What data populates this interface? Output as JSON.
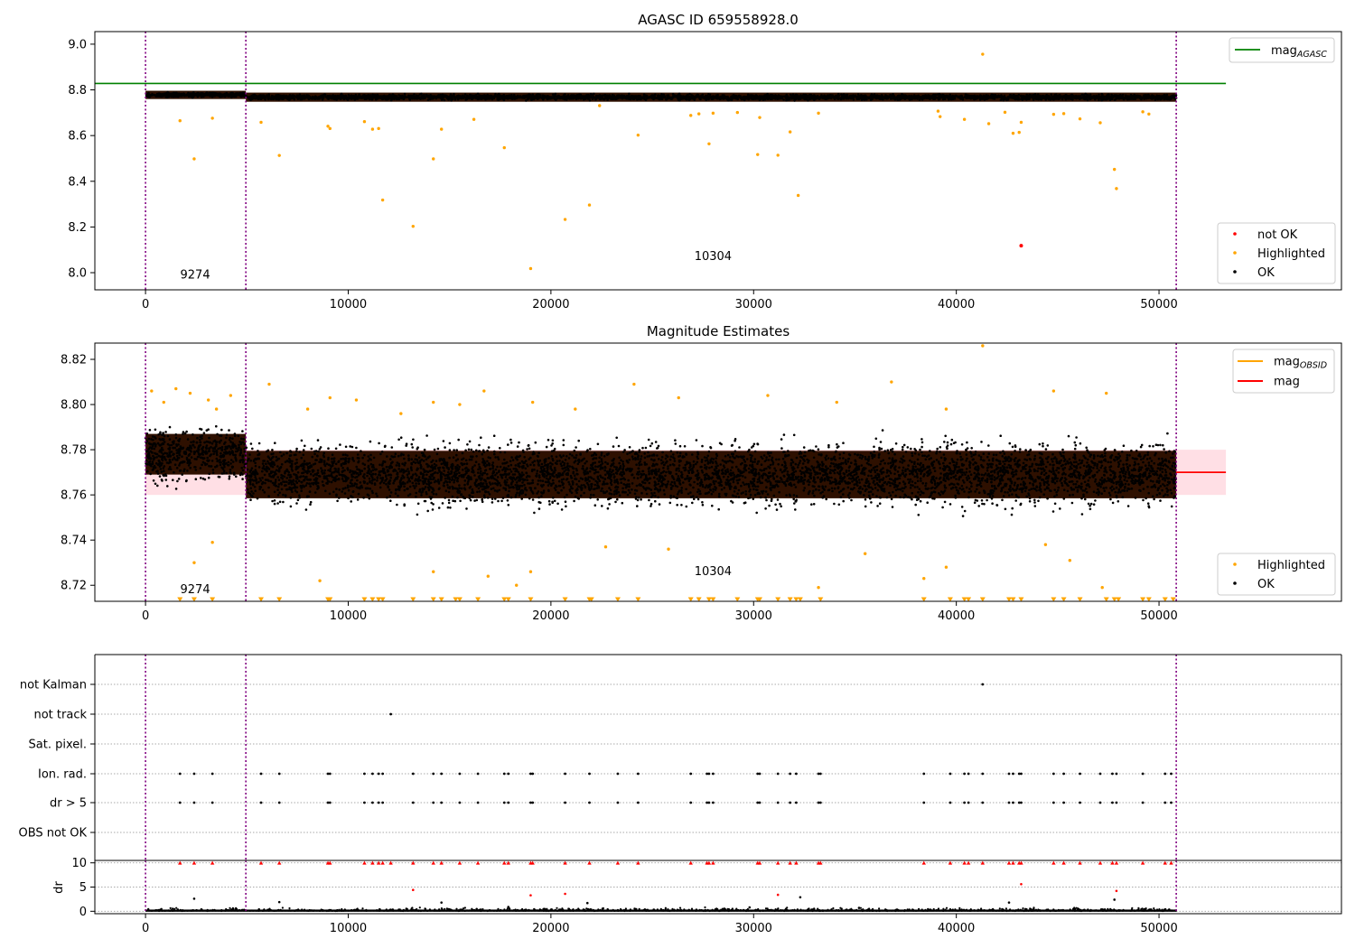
{
  "figure": {
    "title": "AGASC ID 659558928.0"
  },
  "colors": {
    "ok": "#000000",
    "highlighted": "#ffa500",
    "not_ok": "#ff0000",
    "agasc_line": "#008000",
    "mean_line": "#ff0000",
    "obsid_line": "#ffa500",
    "boundary": "#800080",
    "band": "#ffc0cb",
    "band_inner": "#2e1000"
  },
  "chart_data": [
    {
      "type": "scatter",
      "title": "",
      "xlim": [
        -2500,
        59000
      ],
      "ylim": [
        7.925,
        9.055
      ],
      "x_ticks": [
        0,
        10000,
        20000,
        30000,
        40000,
        50000
      ],
      "y_ticks": [
        8.0,
        8.2,
        8.4,
        8.6,
        8.8,
        9.0
      ],
      "y_tick_labels": [
        "8.0",
        "8.2",
        "8.4",
        "8.6",
        "8.8",
        "9.0"
      ],
      "obs_boundaries": [
        0,
        4950,
        50850
      ],
      "obs_labels": [
        {
          "obsid": "9274",
          "x": 2450,
          "y": 7.975
        },
        {
          "obsid": "10304",
          "x": 28000,
          "y": 8.055
        }
      ],
      "mag_agasc": 8.828,
      "ok_band": [
        {
          "x_range": [
            0,
            4950
          ],
          "center": 8.778,
          "half_width": 0.018
        },
        {
          "x_range": [
            4950,
            50850
          ],
          "center": 8.768,
          "half_width": 0.02
        }
      ],
      "legend_top": [
        {
          "label": "mag",
          "subscript": "AGASC",
          "color": "#008000"
        }
      ],
      "legend_bottom": [
        "not OK",
        "Highlighted",
        "OK"
      ],
      "series": [
        {
          "name": "not OK",
          "x": [
            43200
          ],
          "y": [
            8.118
          ]
        },
        {
          "name": "Highlighted",
          "x": [
            1700,
            2400,
            3300,
            5700,
            6600,
            9000,
            9100,
            10800,
            11200,
            11500,
            11700,
            13200,
            14200,
            14600,
            16200,
            17700,
            19000,
            20700,
            21900,
            22400,
            24300,
            26900,
            27300,
            27800,
            28000,
            29200,
            30200,
            30300,
            31200,
            31800,
            32200,
            33200,
            39100,
            39200,
            40400,
            41300,
            41600,
            42400,
            42800,
            43100,
            43200,
            44800,
            45300,
            46100,
            47100,
            47800,
            47900,
            49200,
            49500
          ],
          "y": [
            8.665,
            8.498,
            8.676,
            8.658,
            8.513,
            8.641,
            8.631,
            8.661,
            8.628,
            8.631,
            8.318,
            8.203,
            8.498,
            8.628,
            8.671,
            8.547,
            8.018,
            8.233,
            8.296,
            8.731,
            8.602,
            8.688,
            8.695,
            8.564,
            8.698,
            8.701,
            8.517,
            8.679,
            8.514,
            8.616,
            8.338,
            8.698,
            8.707,
            8.683,
            8.671,
            8.956,
            8.652,
            8.702,
            8.61,
            8.614,
            8.658,
            8.693,
            8.696,
            8.673,
            8.656,
            8.452,
            8.368,
            8.704,
            8.694
          ]
        }
      ]
    },
    {
      "type": "scatter",
      "title": "Magnitude Estimates",
      "xlim": [
        -2500,
        59000
      ],
      "ylim": [
        8.7129,
        8.8272
      ],
      "x_ticks": [
        0,
        10000,
        20000,
        30000,
        40000,
        50000
      ],
      "y_ticks": [
        8.72,
        8.74,
        8.76,
        8.78,
        8.8,
        8.82
      ],
      "y_tick_labels": [
        "8.72",
        "8.74",
        "8.76",
        "8.78",
        "8.80",
        "8.82"
      ],
      "obs_boundaries": [
        0,
        4950,
        50850
      ],
      "obs_labels": [
        {
          "obsid": "9274",
          "x": 2450,
          "y": 8.7165
        },
        {
          "obsid": "10304",
          "x": 28000,
          "y": 8.7244
        }
      ],
      "mag": 8.77,
      "mag_band": [
        8.76,
        8.78
      ],
      "mag_obsid": [
        {
          "x_range": [
            0,
            4950
          ],
          "value": 8.7795
        },
        {
          "x_range": [
            4950,
            50850
          ],
          "value": 8.7695
        }
      ],
      "ok_band": [
        {
          "x_range": [
            0,
            4950
          ],
          "center": 8.778,
          "half_width": 0.009
        },
        {
          "x_range": [
            4950,
            50850
          ],
          "center": 8.769,
          "half_width": 0.0105
        }
      ],
      "legend_top": [
        {
          "label": "mag",
          "subscript": "OBSID",
          "color": "#ffa500"
        },
        {
          "label": "mag",
          "subscript": "",
          "color": "#ff0000"
        }
      ],
      "legend_bottom": [
        "Highlighted",
        "OK"
      ],
      "series": [
        {
          "name": "Highlighted",
          "x": [
            300,
            900,
            1500,
            2200,
            3100,
            3500,
            4200,
            6100,
            8000,
            9100,
            10400,
            12600,
            14200,
            15500,
            16700,
            19100,
            21200,
            24100,
            26300,
            30700,
            34100,
            36800,
            39500,
            41300,
            44800,
            47400,
            2400,
            3300,
            8600,
            14200,
            16900,
            18300,
            19000,
            22700,
            25800,
            33200,
            35500,
            38400,
            39500,
            44400,
            45600,
            47200
          ],
          "y": [
            8.806,
            8.801,
            8.807,
            8.805,
            8.802,
            8.798,
            8.804,
            8.809,
            8.798,
            8.803,
            8.802,
            8.796,
            8.801,
            8.8,
            8.806,
            8.801,
            8.798,
            8.809,
            8.803,
            8.804,
            8.801,
            8.81,
            8.798,
            8.826,
            8.806,
            8.805,
            8.73,
            8.739,
            8.722,
            8.726,
            8.724,
            8.72,
            8.726,
            8.737,
            8.736,
            8.719,
            8.734,
            8.723,
            8.728,
            8.738,
            8.731,
            8.719
          ]
        },
        {
          "name": "Highlighted (below range)",
          "x": [
            1700,
            2400,
            3300,
            5700,
            6600,
            9000,
            9100,
            10800,
            11200,
            11500,
            11700,
            13200,
            14200,
            14600,
            15300,
            15500,
            16400,
            17700,
            17900,
            19000,
            20700,
            21900,
            22000,
            23300,
            24300,
            26900,
            27300,
            27800,
            28000,
            29200,
            30200,
            30300,
            31200,
            31800,
            32100,
            32300,
            33300,
            38400,
            39700,
            40400,
            40600,
            41300,
            42600,
            42800,
            43200,
            44800,
            45300,
            46100,
            47400,
            47800,
            48000,
            49200,
            49500,
            50300,
            50700
          ],
          "y": [
            8.7135,
            8.7135,
            8.7135,
            8.7135,
            8.7135,
            8.7135,
            8.7135,
            8.7135,
            8.7135,
            8.7135,
            8.7135,
            8.7135,
            8.7135,
            8.7135,
            8.7135,
            8.7135,
            8.7135,
            8.7135,
            8.7135,
            8.7135,
            8.7135,
            8.7135,
            8.7135,
            8.7135,
            8.7135,
            8.7135,
            8.7135,
            8.7135,
            8.7135,
            8.7135,
            8.7135,
            8.7135,
            8.7135,
            8.7135,
            8.7135,
            8.7135,
            8.7135,
            8.7135,
            8.7135,
            8.7135,
            8.7135,
            8.7135,
            8.7135,
            8.7135,
            8.7135,
            8.7135,
            8.7135,
            8.7135,
            8.7135,
            8.7135,
            8.7135,
            8.7135,
            8.7135,
            8.7135,
            8.7135
          ]
        }
      ]
    },
    {
      "type": "scatter",
      "title": "",
      "xlim": [
        -2500,
        59000
      ],
      "obs_boundaries": [
        0,
        4950,
        50850
      ],
      "flag_rows": [
        "not Kalman",
        "not track",
        "Sat. pixel.",
        "Ion. rad.",
        "dr > 5",
        "OBS not OK"
      ],
      "flags": [
        {
          "row": "not Kalman",
          "x": [
            41300
          ]
        },
        {
          "row": "not track",
          "x": [
            12100
          ]
        },
        {
          "row": "Ion. rad.",
          "x": [
            1700,
            2400,
            3300,
            5700,
            6600,
            9000,
            9100,
            10800,
            11200,
            11500,
            11700,
            13200,
            14200,
            14600,
            15500,
            16400,
            17700,
            17900,
            19000,
            19100,
            20700,
            21900,
            23300,
            24300,
            26900,
            27700,
            27800,
            28000,
            30200,
            30300,
            31200,
            31800,
            32100,
            33200,
            33300,
            38400,
            39700,
            40400,
            40600,
            41300,
            42600,
            42800,
            43100,
            43200,
            44800,
            45300,
            46100,
            47100,
            47700,
            47900,
            49200,
            50300,
            50600
          ]
        },
        {
          "row": "dr > 5",
          "x": [
            1700,
            2400,
            3300,
            5700,
            6600,
            9000,
            9100,
            10800,
            11200,
            11500,
            11700,
            13200,
            14200,
            14600,
            15500,
            16400,
            17700,
            17900,
            19000,
            19100,
            20700,
            21900,
            23300,
            24300,
            26900,
            27700,
            27800,
            28000,
            30200,
            30300,
            31200,
            31800,
            32100,
            33200,
            33300,
            38400,
            39700,
            40400,
            40600,
            41300,
            42600,
            42800,
            43100,
            43200,
            44800,
            45300,
            46100,
            47100,
            47700,
            47900,
            49200,
            50300,
            50600
          ]
        }
      ]
    },
    {
      "type": "scatter",
      "title": "",
      "ylabel": "dr",
      "xlim": [
        -2500,
        59000
      ],
      "ylim": [
        -0.5,
        10.5
      ],
      "x_ticks": [
        0,
        10000,
        20000,
        30000,
        40000,
        50000
      ],
      "y_ticks": [
        0,
        5,
        10
      ],
      "y_tick_labels": [
        "0",
        "5",
        "10"
      ],
      "obs_boundaries": [
        0,
        4950,
        50850
      ],
      "series": [
        {
          "name": "clipped",
          "y_value": 10,
          "x": [
            1700,
            2400,
            3300,
            5700,
            6600,
            9000,
            9100,
            10800,
            11200,
            11500,
            11700,
            12100,
            13200,
            14200,
            14600,
            15500,
            16400,
            17700,
            17900,
            19000,
            19100,
            20700,
            21900,
            23300,
            24300,
            26900,
            27700,
            27800,
            28000,
            30200,
            30300,
            31200,
            31800,
            32100,
            33200,
            33300,
            38400,
            39700,
            40400,
            40600,
            41300,
            42600,
            42800,
            43100,
            43200,
            44800,
            45300,
            46100,
            47100,
            47700,
            47900,
            49200,
            50300,
            50600
          ]
        },
        {
          "name": "flagged",
          "x": [
            13200,
            20700,
            19000,
            31200,
            43200,
            47900
          ],
          "y": [
            4.4,
            3.6,
            3.3,
            3.4,
            5.6,
            4.2
          ]
        },
        {
          "name": "ok",
          "x": [
            2400,
            6600,
            14600,
            21800,
            32300,
            42600,
            47800,
            17900,
            29800,
            35200
          ],
          "y": [
            2.6,
            1.9,
            1.8,
            1.7,
            2.9,
            1.8,
            2.4,
            0.9,
            0.8,
            0.7
          ]
        }
      ]
    }
  ]
}
